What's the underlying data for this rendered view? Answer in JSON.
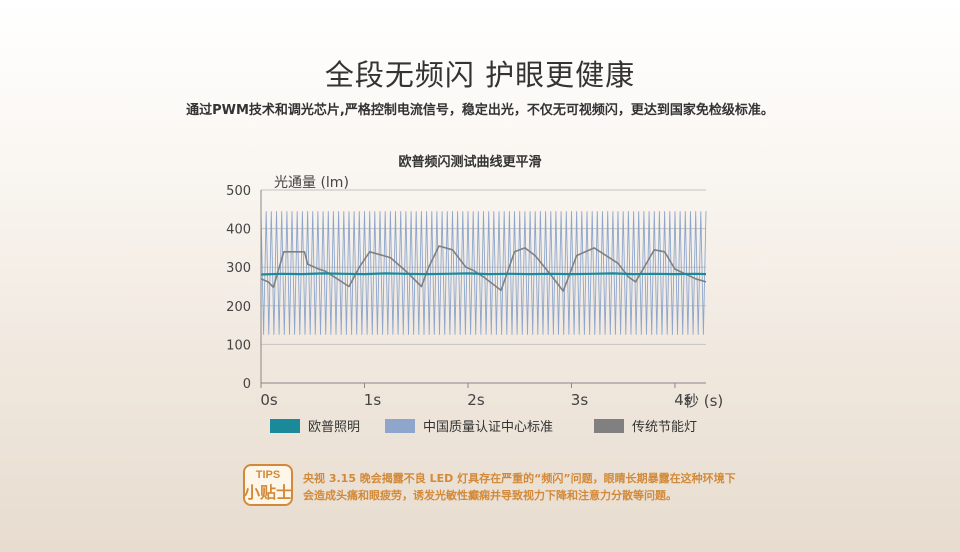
{
  "header": {
    "title": "全段无频闪 护眼更健康",
    "subtitle": "通过PWM技术和调光芯片,严格控制电流信号，稳定出光，不仅无可视频闪，更达到国家免检级标准。"
  },
  "tips": {
    "badge_top": "TIPS",
    "badge_bottom": "小贴士",
    "line1": "央视 3.15 晚会揭露不良 LED 灯具存在严重的“频闪”问题，眼睛长期暴露在这种环境下",
    "line2": "会造成头痛和眼疲劳，诱发光敏性癫痫并导致视力下降和注意力分散等问题。"
  },
  "colors": {
    "oupu": "#1a8a9a",
    "standard": "#8ea6cc",
    "traditional": "#808080",
    "tips_orange": "#d28a3a"
  },
  "chart_data": {
    "type": "line",
    "title": "欧普频闪测试曲线更平滑",
    "ylabel": "光通量 (lm)",
    "xlabel": "秒 (s)",
    "xlim": [
      0,
      4.3
    ],
    "ylim": [
      0,
      500
    ],
    "x_ticks": [
      "0s",
      "1s",
      "2s",
      "3s",
      "4s"
    ],
    "x_tick_values": [
      0,
      1,
      2,
      3,
      4
    ],
    "y_ticks": [
      "0",
      "100",
      "200",
      "300",
      "400",
      "500"
    ],
    "y_tick_values": [
      0,
      100,
      200,
      300,
      400,
      500
    ],
    "series": [
      {
        "name": "欧普照明",
        "color": "#1a8a9a",
        "x": [
          0,
          0.2,
          0.4,
          0.6,
          0.8,
          1.0,
          1.2,
          1.4,
          1.6,
          1.8,
          2.0,
          2.2,
          2.4,
          2.6,
          2.8,
          3.0,
          3.2,
          3.4,
          3.6,
          3.8,
          4.0,
          4.2,
          4.3
        ],
        "y": [
          281,
          283,
          282,
          284,
          283,
          282,
          284,
          283,
          282,
          283,
          284,
          282,
          283,
          282,
          283,
          282,
          283,
          284,
          282,
          283,
          282,
          283,
          282
        ]
      },
      {
        "name": "中国质量认证中心标准",
        "color": "#8ea6cc",
        "kind": "oscillation",
        "min": 125,
        "max": 445,
        "cycles": 86
      },
      {
        "name": "传统节能灯",
        "color": "#808080",
        "x": [
          0,
          0.07,
          0.12,
          0.22,
          0.42,
          0.45,
          0.55,
          0.62,
          0.85,
          0.95,
          1.05,
          1.25,
          1.4,
          1.55,
          1.62,
          1.72,
          1.85,
          1.98,
          2.05,
          2.15,
          2.32,
          2.45,
          2.55,
          2.65,
          2.8,
          2.92,
          3.05,
          3.22,
          3.45,
          3.55,
          3.62,
          3.8,
          3.9,
          4.0,
          4.2,
          4.3
        ],
        "y": [
          270,
          262,
          248,
          340,
          340,
          308,
          296,
          290,
          250,
          300,
          340,
          325,
          290,
          250,
          300,
          355,
          345,
          300,
          292,
          275,
          240,
          340,
          350,
          330,
          280,
          238,
          330,
          350,
          310,
          275,
          262,
          345,
          340,
          295,
          270,
          262
        ]
      }
    ],
    "legend": [
      "欧普照明",
      "中国质量认证中心标准",
      "传统节能灯"
    ],
    "grid": true
  }
}
